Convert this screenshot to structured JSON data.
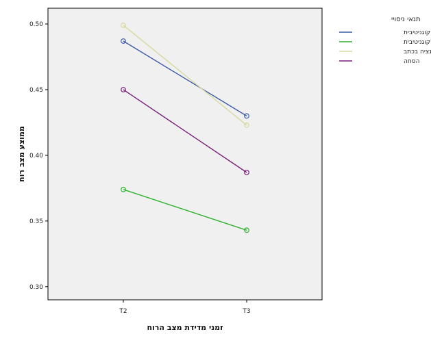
{
  "chart_data": {
    "type": "line",
    "categories": [
      "T2",
      "T3"
    ],
    "xlabel": "זמני מדידת מצב הרוח",
    "ylabel": "ממוצע מצב רוח",
    "ylim": [
      0.29,
      0.512
    ],
    "yticks": [
      "0.30",
      "0.35",
      "0.40",
      "0.45",
      "0.50"
    ],
    "grid": false,
    "legend_position": "right",
    "legend_title": "תנאי ניסויי",
    "background": "#f0f0f0",
    "series": [
      {
        "name": "הפרדה קוגניטיבית",
        "values": [
          0.487,
          0.43
        ],
        "color": "#3e5ba9"
      },
      {
        "name": "הבנייה קוגניטיבית",
        "values": [
          0.374,
          0.343
        ],
        "color": "#2db32d"
      },
      {
        "name": "רומינציה בכתב",
        "values": [
          0.499,
          0.423
        ],
        "color": "#d8d8a0"
      },
      {
        "name": "הסחה",
        "values": [
          0.45,
          0.387
        ],
        "color": "#7a1f7a"
      }
    ]
  }
}
